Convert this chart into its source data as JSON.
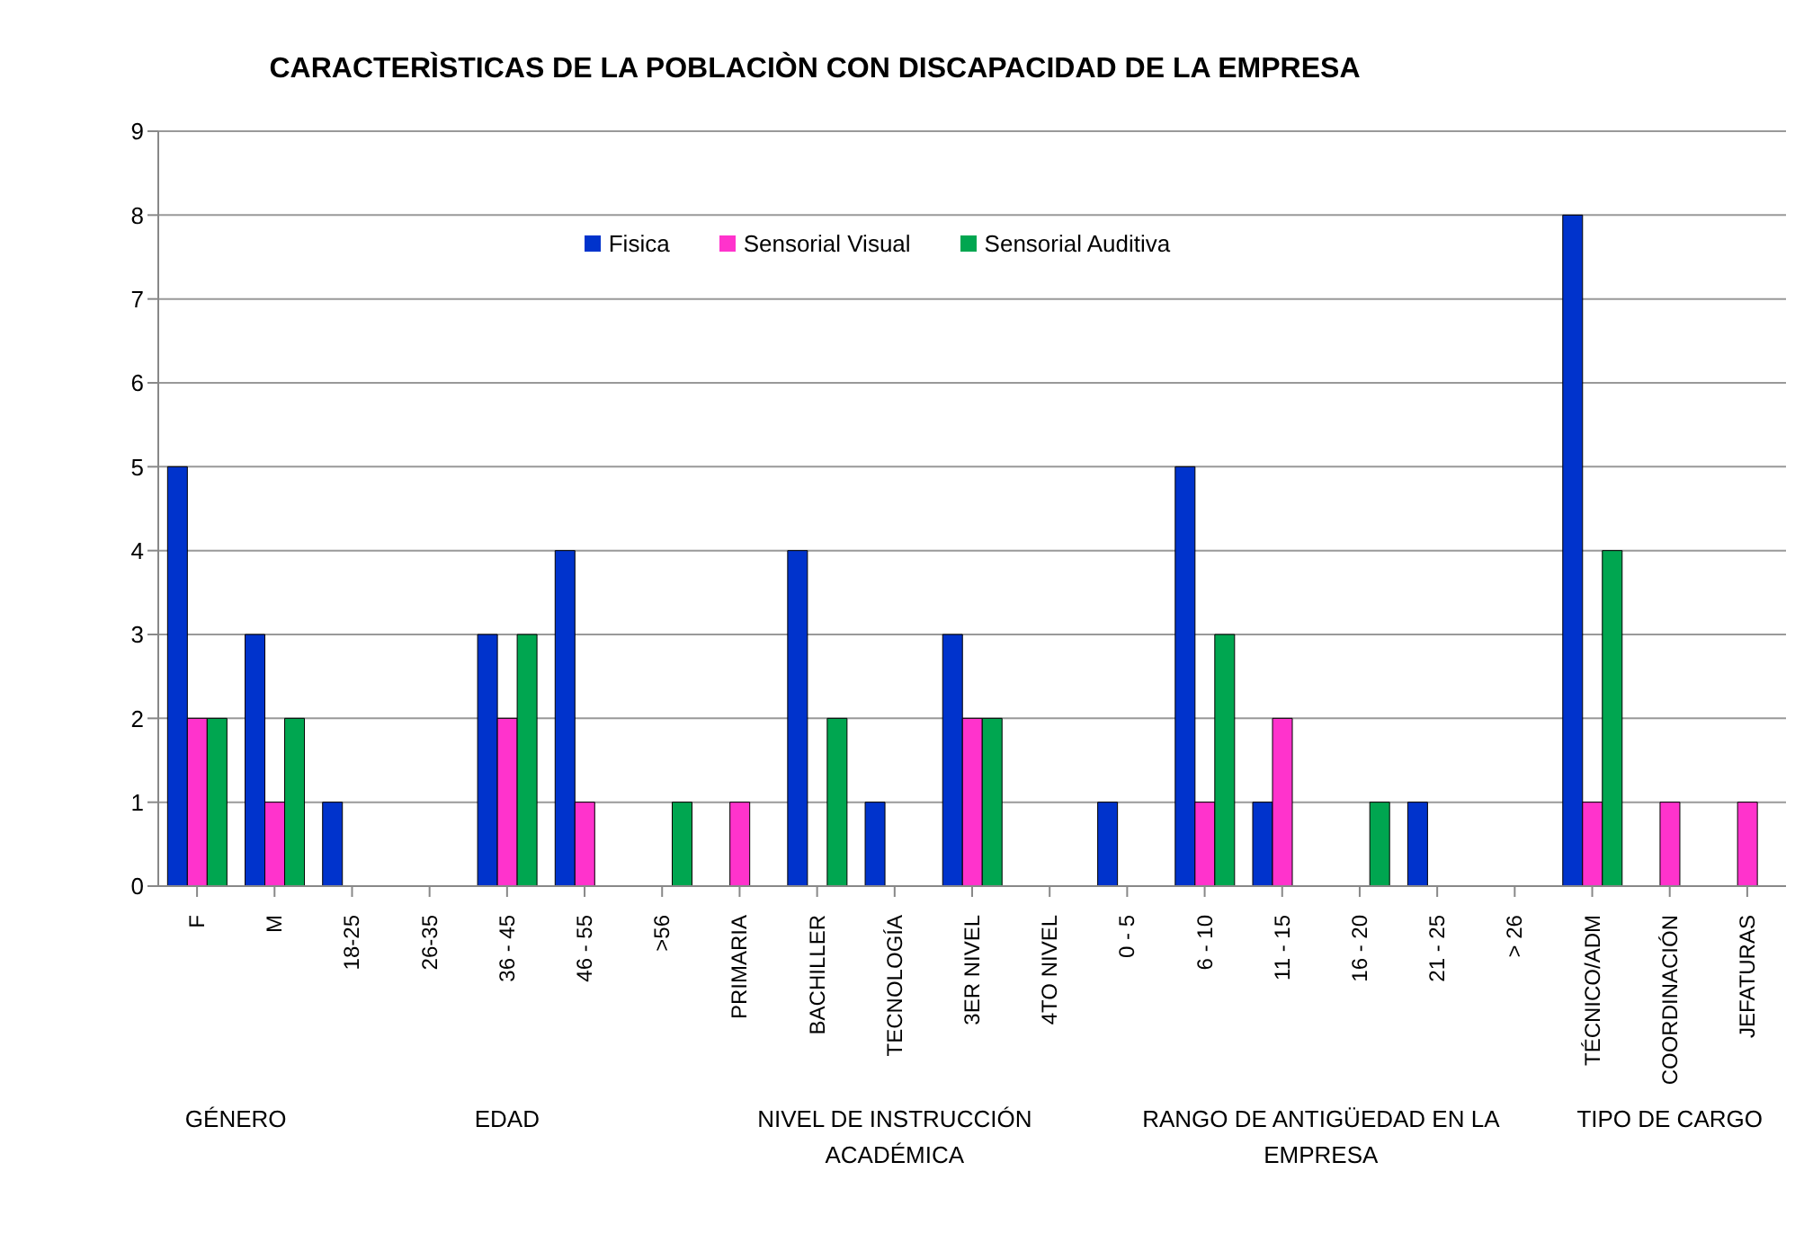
{
  "chart_data": {
    "type": "bar",
    "title": "CARACTERÌSTICAS DE LA POBLACIÒN CON DISCAPACIDAD DE LA EMPRESA",
    "categories": [
      "F",
      "M",
      "18-25",
      "26-35",
      "36 - 45",
      "46 - 55",
      ">56",
      "PRIMARIA",
      "BACHILLER",
      "TECNOLOGÍA",
      "3ER NIVEL",
      "4TO NIVEL",
      "0 - 5",
      "6 - 10",
      "11 - 15",
      "16 - 20",
      "21 - 25",
      "> 26",
      "TÉCNICO/ADM",
      "COORDINACIÓN",
      "JEFATURAS"
    ],
    "series": [
      {
        "name": "Fisica",
        "color": "#0033cc",
        "values": [
          5,
          3,
          1,
          0,
          3,
          4,
          0,
          0,
          4,
          1,
          3,
          0,
          1,
          5,
          1,
          0,
          1,
          0,
          8,
          0,
          0
        ]
      },
      {
        "name": "Sensorial Visual",
        "color": "#ff33cc",
        "values": [
          2,
          1,
          0,
          0,
          2,
          1,
          0,
          1,
          0,
          0,
          2,
          0,
          0,
          1,
          2,
          0,
          0,
          0,
          1,
          1,
          1
        ]
      },
      {
        "name": "Sensorial Auditiva",
        "color": "#00a650",
        "values": [
          2,
          2,
          0,
          0,
          3,
          0,
          1,
          0,
          2,
          0,
          2,
          0,
          0,
          3,
          0,
          1,
          0,
          0,
          4,
          0,
          0
        ]
      }
    ],
    "annotations": [
      "GÉNERO",
      "EDAD",
      "NIVEL DE INSTRUCCIÓN ACADÉMICA",
      "RANGO DE ANTIGÜEDAD EN LA EMPRESA",
      "TIPO DE CARGO"
    ],
    "ylim": [
      0,
      9
    ],
    "yticks": [
      0,
      1,
      2,
      3,
      4,
      5,
      6,
      7,
      8,
      9
    ],
    "grid": "y",
    "legend": "top"
  }
}
